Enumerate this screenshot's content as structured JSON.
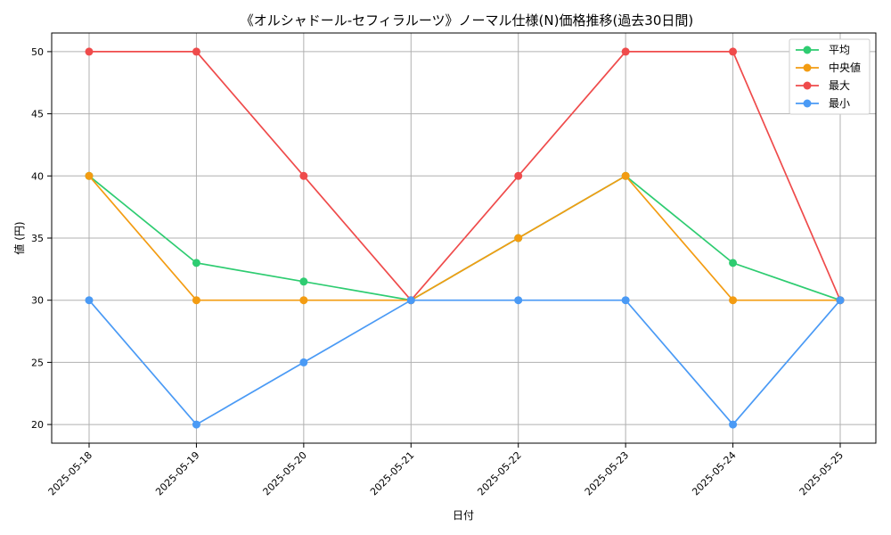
{
  "chart_data": {
    "type": "line",
    "title": "《オルシャドール-セフィラルーツ》ノーマル仕様(N)価格推移(過去30日間)",
    "xlabel": "日付",
    "ylabel": "値 (円)",
    "categories": [
      "2025-05-18",
      "2025-05-19",
      "2025-05-20",
      "2025-05-21",
      "2025-05-22",
      "2025-05-23",
      "2025-05-24",
      "2025-05-25"
    ],
    "ylim": [
      18.5,
      51.5
    ],
    "yticks": [
      20,
      25,
      30,
      35,
      40,
      45,
      50
    ],
    "grid": true,
    "legend_position": "top-right",
    "series": [
      {
        "name": "平均",
        "color": "#2ecc71",
        "values": [
          40,
          33,
          31.5,
          30,
          35,
          40,
          33,
          30
        ]
      },
      {
        "name": "中央値",
        "color": "#f39c12",
        "values": [
          40,
          30,
          30,
          30,
          35,
          40,
          30,
          30
        ]
      },
      {
        "name": "最大",
        "color": "#ef4b4b",
        "values": [
          50,
          50,
          40,
          30,
          40,
          50,
          50,
          30
        ]
      },
      {
        "name": "最小",
        "color": "#4a9af5",
        "values": [
          30,
          20,
          25,
          30,
          30,
          30,
          20,
          30
        ]
      }
    ]
  }
}
